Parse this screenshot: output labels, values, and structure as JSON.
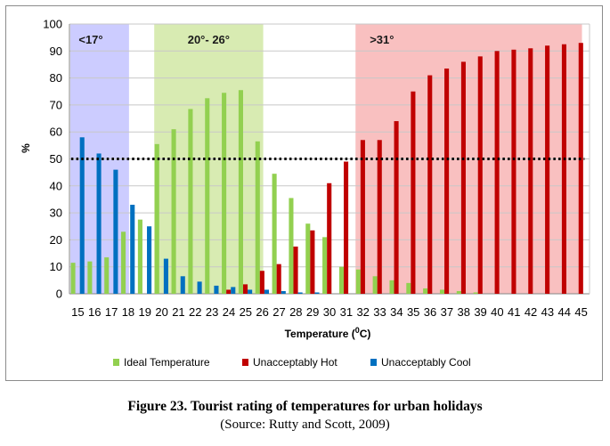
{
  "chart_data": {
    "type": "bar",
    "categories": [
      "15",
      "16",
      "17",
      "18",
      "19",
      "20",
      "21",
      "22",
      "23",
      "24",
      "25",
      "26",
      "27",
      "28",
      "29",
      "30",
      "31",
      "32",
      "33",
      "34",
      "35",
      "36",
      "37",
      "38",
      "39",
      "40",
      "41",
      "42",
      "43",
      "44",
      "45"
    ],
    "series": [
      {
        "name": "Ideal Temperature",
        "color": "#92d050",
        "values": [
          11.5,
          12,
          13.5,
          23,
          27.5,
          55.5,
          61,
          68.5,
          72.5,
          74.5,
          75.5,
          56.5,
          44.5,
          35.5,
          26,
          21,
          10,
          9,
          6.5,
          5,
          4,
          2,
          1.5,
          1,
          0.5,
          0,
          0,
          0,
          0,
          0,
          0
        ]
      },
      {
        "name": "Unacceptably Hot",
        "color": "#c00000",
        "values": [
          0,
          0,
          0,
          0,
          0,
          0,
          0,
          0,
          0,
          1.5,
          3.5,
          8.5,
          11,
          17.5,
          23.5,
          41,
          49,
          57,
          57,
          64,
          75,
          81,
          83.5,
          86,
          88,
          90,
          90.5,
          91,
          92,
          92.5,
          93
        ]
      },
      {
        "name": "Unacceptably Cool",
        "color": "#0070c0",
        "values": [
          58,
          52,
          46,
          33,
          25,
          13,
          6.5,
          4.5,
          3,
          2.5,
          1.5,
          1.5,
          1,
          0.5,
          0.5,
          0,
          0,
          0,
          0,
          0,
          0,
          0,
          0,
          0,
          0,
          0,
          0,
          0,
          0,
          0,
          0
        ]
      }
    ],
    "ylim": [
      0,
      100
    ],
    "yticks": [
      0,
      10,
      20,
      30,
      40,
      50,
      60,
      70,
      80,
      90,
      100
    ],
    "ylabel": "%",
    "xlabel": "Temperature (",
    "xlabel_sup": "0",
    "xlabel_end": "C)",
    "reference_line": {
      "value": 50,
      "style": "dotted"
    },
    "bands": [
      {
        "label": "<17°",
        "from": "15",
        "to": "18",
        "color": "#ccccff"
      },
      {
        "label": "20°- 26°",
        "from": "20",
        "to": "26",
        "color": "#d8ebb2"
      },
      {
        "label": ">31°",
        "from": "32",
        "to": "45",
        "color": "#f9c0c0"
      }
    ],
    "grid": true,
    "legend_position": "bottom"
  },
  "caption": {
    "title": "Figure 23. Tourist rating of temperatures for urban holidays",
    "source": "(Source: Rutty and Scott, 2009)"
  }
}
